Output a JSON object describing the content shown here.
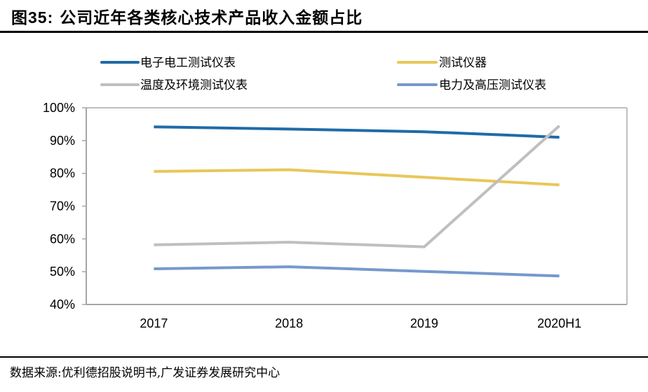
{
  "header": {
    "figure_label": "图35:",
    "title": "公司近年各类核心技术产品收入金额占比"
  },
  "footer": {
    "source": "数据来源:优利德招股说明书,广发证券发展研究中心"
  },
  "chart_data": {
    "type": "line",
    "title": "公司近年各类核心技术产品收入金额占比",
    "xlabel": "",
    "ylabel": "",
    "categories": [
      "2017",
      "2018",
      "2019",
      "2020H1"
    ],
    "ylim": [
      0.4,
      1.0
    ],
    "yticks": [
      0.4,
      0.5,
      0.6,
      0.7,
      0.8,
      0.9,
      1.0
    ],
    "ytick_labels": [
      "40%",
      "50%",
      "60%",
      "70%",
      "80%",
      "90%",
      "100%"
    ],
    "grid": false,
    "legend_position": "top",
    "series": [
      {
        "name": "电子电工测试仪表",
        "color": "#1F6BA8",
        "values": [
          0.942,
          0.935,
          0.927,
          0.91
        ]
      },
      {
        "name": "测试仪器",
        "color": "#E8C75A",
        "values": [
          0.806,
          0.811,
          0.788,
          0.765
        ]
      },
      {
        "name": "温度及环境测试仪表",
        "color": "#BFBFBF",
        "values": [
          0.582,
          0.59,
          0.576,
          0.945
        ]
      },
      {
        "name": "电力及高压测试仪表",
        "color": "#7699CC",
        "values": [
          0.509,
          0.515,
          0.501,
          0.487
        ]
      }
    ]
  }
}
